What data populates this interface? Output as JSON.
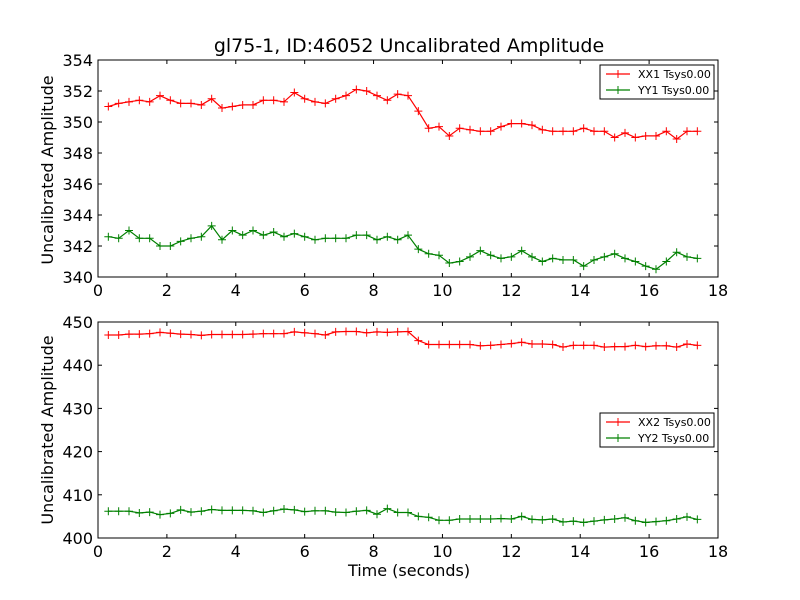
{
  "chart_data": [
    {
      "type": "line",
      "title": "gl75-1, ID:46052 Uncalibrated Amplitude",
      "xlabel": "",
      "ylabel": "Uncalibrated Amplitude",
      "xlim": [
        0,
        18
      ],
      "ylim": [
        340,
        354
      ],
      "xticks": [
        "0",
        "2",
        "4",
        "6",
        "8",
        "10",
        "12",
        "14",
        "16",
        "18"
      ],
      "yticks": [
        "340",
        "342",
        "344",
        "346",
        "348",
        "350",
        "352",
        "354"
      ],
      "xtick_values": [
        0,
        2,
        4,
        6,
        8,
        10,
        12,
        14,
        16,
        18
      ],
      "ytick_values": [
        340,
        342,
        344,
        346,
        348,
        350,
        352,
        354
      ],
      "grid": false,
      "legend_position": "top-right",
      "x": [
        0.3,
        0.6,
        0.9,
        1.2,
        1.5,
        1.8,
        2.1,
        2.4,
        2.7,
        3.0,
        3.3,
        3.6,
        3.9,
        4.2,
        4.5,
        4.8,
        5.1,
        5.4,
        5.7,
        6.0,
        6.3,
        6.6,
        6.9,
        7.2,
        7.5,
        7.8,
        8.1,
        8.4,
        8.7,
        9.0,
        9.3,
        9.6,
        9.9,
        10.2,
        10.5,
        10.8,
        11.1,
        11.4,
        11.7,
        12.0,
        12.3,
        12.6,
        12.9,
        13.2,
        13.5,
        13.8,
        14.1,
        14.4,
        14.7,
        15.0,
        15.3,
        15.6,
        15.9,
        16.2,
        16.5,
        16.8,
        17.1,
        17.4
      ],
      "series": [
        {
          "name": "XX1 Tsys0.00",
          "color": "#ff0000",
          "values": [
            351.0,
            351.2,
            351.3,
            351.4,
            351.3,
            351.7,
            351.4,
            351.2,
            351.2,
            351.1,
            351.5,
            350.9,
            351.0,
            351.1,
            351.1,
            351.4,
            351.4,
            351.3,
            351.9,
            351.5,
            351.3,
            351.2,
            351.5,
            351.7,
            352.1,
            352.0,
            351.7,
            351.4,
            351.8,
            351.7,
            350.7,
            349.6,
            349.7,
            349.1,
            349.6,
            349.5,
            349.4,
            349.4,
            349.7,
            349.9,
            349.9,
            349.8,
            349.5,
            349.4,
            349.4,
            349.4,
            349.6,
            349.4,
            349.4,
            349.0,
            349.3,
            349.0,
            349.1,
            349.1,
            349.4,
            348.9,
            349.4,
            349.4
          ]
        },
        {
          "name": "YY1 Tsys0.00",
          "color": "#008000",
          "values": [
            342.6,
            342.5,
            343.0,
            342.5,
            342.5,
            342.0,
            342.0,
            342.3,
            342.5,
            342.6,
            343.3,
            342.4,
            343.0,
            342.7,
            343.0,
            342.7,
            342.9,
            342.6,
            342.8,
            342.6,
            342.4,
            342.5,
            342.5,
            342.5,
            342.7,
            342.7,
            342.4,
            342.6,
            342.4,
            342.7,
            341.8,
            341.5,
            341.4,
            340.9,
            341.0,
            341.3,
            341.7,
            341.4,
            341.2,
            341.3,
            341.7,
            341.3,
            341.0,
            341.2,
            341.1,
            341.1,
            340.7,
            341.1,
            341.3,
            341.5,
            341.2,
            341.0,
            340.7,
            340.5,
            341.0,
            341.6,
            341.3,
            341.2
          ]
        }
      ]
    },
    {
      "type": "line",
      "title": "",
      "xlabel": "Time (seconds)",
      "ylabel": "Uncalibrated Amplitude",
      "xlim": [
        0,
        18
      ],
      "ylim": [
        400,
        450
      ],
      "xticks": [
        "0",
        "2",
        "4",
        "6",
        "8",
        "10",
        "12",
        "14",
        "16",
        "18"
      ],
      "yticks": [
        "400",
        "410",
        "420",
        "430",
        "440",
        "450"
      ],
      "xtick_values": [
        0,
        2,
        4,
        6,
        8,
        10,
        12,
        14,
        16,
        18
      ],
      "ytick_values": [
        400,
        410,
        420,
        430,
        440,
        450
      ],
      "grid": false,
      "legend_position": "center-right",
      "x": [
        0.3,
        0.6,
        0.9,
        1.2,
        1.5,
        1.8,
        2.1,
        2.4,
        2.7,
        3.0,
        3.3,
        3.6,
        3.9,
        4.2,
        4.5,
        4.8,
        5.1,
        5.4,
        5.7,
        6.0,
        6.3,
        6.6,
        6.9,
        7.2,
        7.5,
        7.8,
        8.1,
        8.4,
        8.7,
        9.0,
        9.3,
        9.6,
        9.9,
        10.2,
        10.5,
        10.8,
        11.1,
        11.4,
        11.7,
        12.0,
        12.3,
        12.6,
        12.9,
        13.2,
        13.5,
        13.8,
        14.1,
        14.4,
        14.7,
        15.0,
        15.3,
        15.6,
        15.9,
        16.2,
        16.5,
        16.8,
        17.1,
        17.4
      ],
      "series": [
        {
          "name": "XX2 Tsys0.00",
          "color": "#ff0000",
          "values": [
            447.0,
            447.0,
            447.2,
            447.2,
            447.3,
            447.6,
            447.4,
            447.2,
            447.1,
            446.9,
            447.1,
            447.1,
            447.1,
            447.1,
            447.2,
            447.3,
            447.3,
            447.3,
            447.7,
            447.5,
            447.3,
            447.0,
            447.7,
            447.8,
            447.8,
            447.5,
            447.7,
            447.6,
            447.7,
            447.8,
            445.7,
            444.8,
            444.8,
            444.8,
            444.8,
            444.8,
            444.5,
            444.6,
            444.8,
            445.0,
            445.3,
            444.9,
            444.9,
            444.8,
            444.2,
            444.6,
            444.6,
            444.6,
            444.2,
            444.3,
            444.3,
            444.6,
            444.3,
            444.5,
            444.5,
            444.2,
            444.9,
            444.6
          ]
        },
        {
          "name": "YY2 Tsys0.00",
          "color": "#008000",
          "values": [
            406.2,
            406.2,
            406.2,
            405.8,
            406.0,
            405.4,
            405.7,
            406.5,
            406.0,
            406.2,
            406.6,
            406.4,
            406.4,
            406.4,
            406.3,
            405.9,
            406.3,
            406.7,
            406.5,
            406.1,
            406.3,
            406.3,
            406.0,
            405.9,
            406.2,
            406.4,
            405.5,
            406.8,
            405.9,
            405.9,
            405.0,
            404.8,
            404.1,
            404.1,
            404.4,
            404.4,
            404.4,
            404.4,
            404.5,
            404.4,
            405.0,
            404.3,
            404.2,
            404.4,
            403.7,
            403.9,
            403.6,
            403.9,
            404.2,
            404.4,
            404.7,
            404.0,
            403.6,
            403.8,
            404.0,
            404.4,
            404.9,
            404.3
          ]
        }
      ]
    }
  ]
}
